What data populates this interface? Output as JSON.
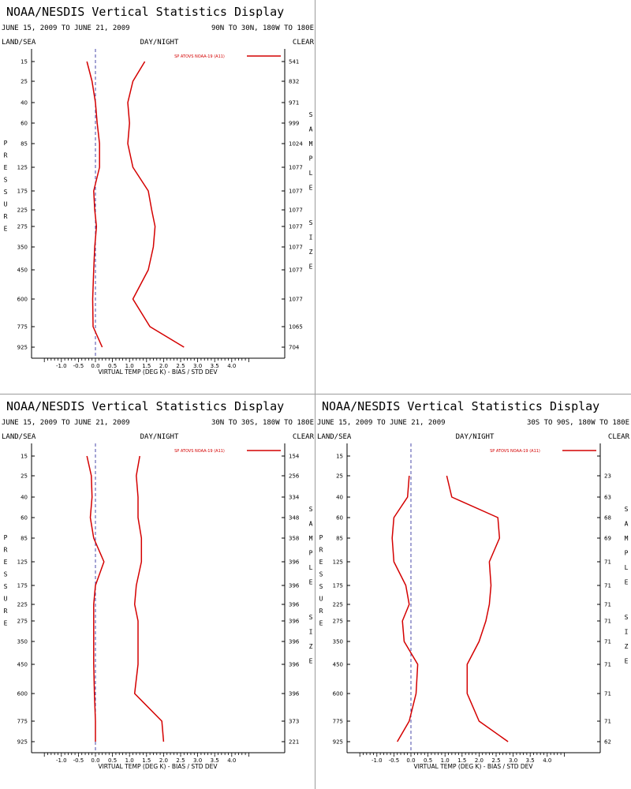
{
  "colors": {
    "series": "#d40000",
    "zero_line": "#4a4aa8",
    "axis": "#000000"
  },
  "chart_data": [
    {
      "type": "line",
      "title": "NOAA/NESDIS Vertical Statistics Display",
      "date_range": "JUNE 15, 2009 TO JUNE 21, 2009",
      "region": "90N TO 30N, 180W TO 180E",
      "header_left": "LAND/SEA",
      "header_center": "DAY/NIGHT",
      "header_right": "CLEAR",
      "ylabel": "PRESSURE",
      "right_label": "SAMPLE SIZE",
      "xlabel": "VIRTUAL TEMP (DEG K) - BIAS / STD DEV",
      "xlim": [
        -1.5,
        4.5
      ],
      "x_ticks": [
        "-1.0",
        "-0.5",
        "0.0",
        "0.5",
        "1.0",
        "1.5",
        "2.0",
        "2.5",
        "3.0",
        "3.5",
        "4.0"
      ],
      "pressure_levels": [
        "15",
        "25",
        "40",
        "60",
        "85",
        "125",
        "175",
        "225",
        "275",
        "350",
        "450",
        "600",
        "775",
        "925"
      ],
      "legend": "SP ATOVS NOAA-19 (A11)",
      "sample_sizes": [
        "541",
        "832",
        "971",
        "999",
        "1024",
        "1077",
        "1077",
        "1077",
        "1077",
        "1077",
        "1077",
        "1077",
        "1065",
        "704"
      ],
      "series": [
        {
          "name": "bias",
          "values": [
            -0.25,
            -0.1,
            0.0,
            0.05,
            0.12,
            0.12,
            -0.05,
            -0.02,
            0.03,
            -0.02,
            -0.05,
            -0.08,
            -0.07,
            0.2
          ]
        },
        {
          "name": "std_dev",
          "values": [
            1.45,
            1.1,
            0.95,
            1.0,
            0.95,
            1.1,
            1.55,
            1.65,
            1.75,
            1.7,
            1.55,
            1.1,
            1.6,
            2.6
          ]
        }
      ]
    },
    {
      "type": "line",
      "title": "NOAA/NESDIS Vertical Statistics Display",
      "date_range": "JUNE 15, 2009 TO JUNE 21, 2009",
      "region": "30N TO 30S, 180W TO 180E",
      "header_left": "LAND/SEA",
      "header_center": "DAY/NIGHT",
      "header_right": "CLEAR",
      "ylabel": "PRESSURE",
      "right_label": "SAMPLE SIZE",
      "xlabel": "VIRTUAL TEMP (DEG K) - BIAS / STD DEV",
      "xlim": [
        -1.5,
        4.5
      ],
      "x_ticks": [
        "-1.0",
        "-0.5",
        "0.0",
        "0.5",
        "1.0",
        "1.5",
        "2.0",
        "2.5",
        "3.0",
        "3.5",
        "4.0"
      ],
      "pressure_levels": [
        "15",
        "25",
        "40",
        "60",
        "85",
        "125",
        "175",
        "225",
        "275",
        "350",
        "450",
        "600",
        "775",
        "925"
      ],
      "legend": "SP ATOVS NOAA-19 (A11)",
      "sample_sizes": [
        "154",
        "256",
        "334",
        "348",
        "358",
        "396",
        "396",
        "396",
        "396",
        "396",
        "396",
        "396",
        "373",
        "221"
      ],
      "series": [
        {
          "name": "bias",
          "values": [
            -0.25,
            -0.12,
            -0.1,
            -0.15,
            -0.05,
            0.25,
            0.0,
            -0.05,
            -0.05,
            -0.05,
            -0.05,
            -0.03,
            0.0,
            0.0
          ]
        },
        {
          "name": "std_dev",
          "values": [
            1.3,
            1.2,
            1.25,
            1.25,
            1.35,
            1.35,
            1.2,
            1.15,
            1.25,
            1.25,
            1.25,
            1.15,
            1.95,
            2.0
          ]
        }
      ]
    },
    {
      "type": "line",
      "title": "NOAA/NESDIS Vertical Statistics Display",
      "date_range": "JUNE 15, 2009 TO JUNE 21, 2009",
      "region": "30S TO 90S, 180W TO 180E",
      "header_left": "LAND/SEA",
      "header_center": "DAY/NIGHT",
      "header_right": "CLEAR",
      "ylabel": "PRESSURE",
      "right_label": "SAMPLE SIZE",
      "xlabel": "VIRTUAL TEMP (DEG K) - BIAS / STD DEV",
      "xlim": [
        -1.5,
        4.5
      ],
      "x_ticks": [
        "-1.0",
        "-0.5",
        "0.0",
        "0.5",
        "1.0",
        "1.5",
        "2.0",
        "2.5",
        "3.0",
        "3.5",
        "4.0"
      ],
      "pressure_levels": [
        "15",
        "25",
        "40",
        "60",
        "85",
        "125",
        "175",
        "225",
        "275",
        "350",
        "450",
        "600",
        "775",
        "925"
      ],
      "legend": "SP ATOVS NOAA-19 (A11)",
      "sample_sizes": [
        "",
        "23",
        "63",
        "68",
        "69",
        "71",
        "71",
        "71",
        "71",
        "71",
        "71",
        "71",
        "71",
        "62"
      ],
      "series": [
        {
          "name": "bias",
          "values": [
            null,
            -0.05,
            -0.1,
            -0.5,
            -0.55,
            -0.5,
            -0.15,
            -0.05,
            -0.25,
            -0.2,
            0.2,
            0.15,
            -0.05,
            -0.4
          ]
        },
        {
          "name": "std_dev",
          "values": [
            null,
            1.05,
            1.2,
            2.55,
            2.6,
            2.3,
            2.35,
            2.3,
            2.2,
            2.0,
            1.65,
            1.65,
            2.0,
            2.85
          ]
        }
      ]
    }
  ]
}
